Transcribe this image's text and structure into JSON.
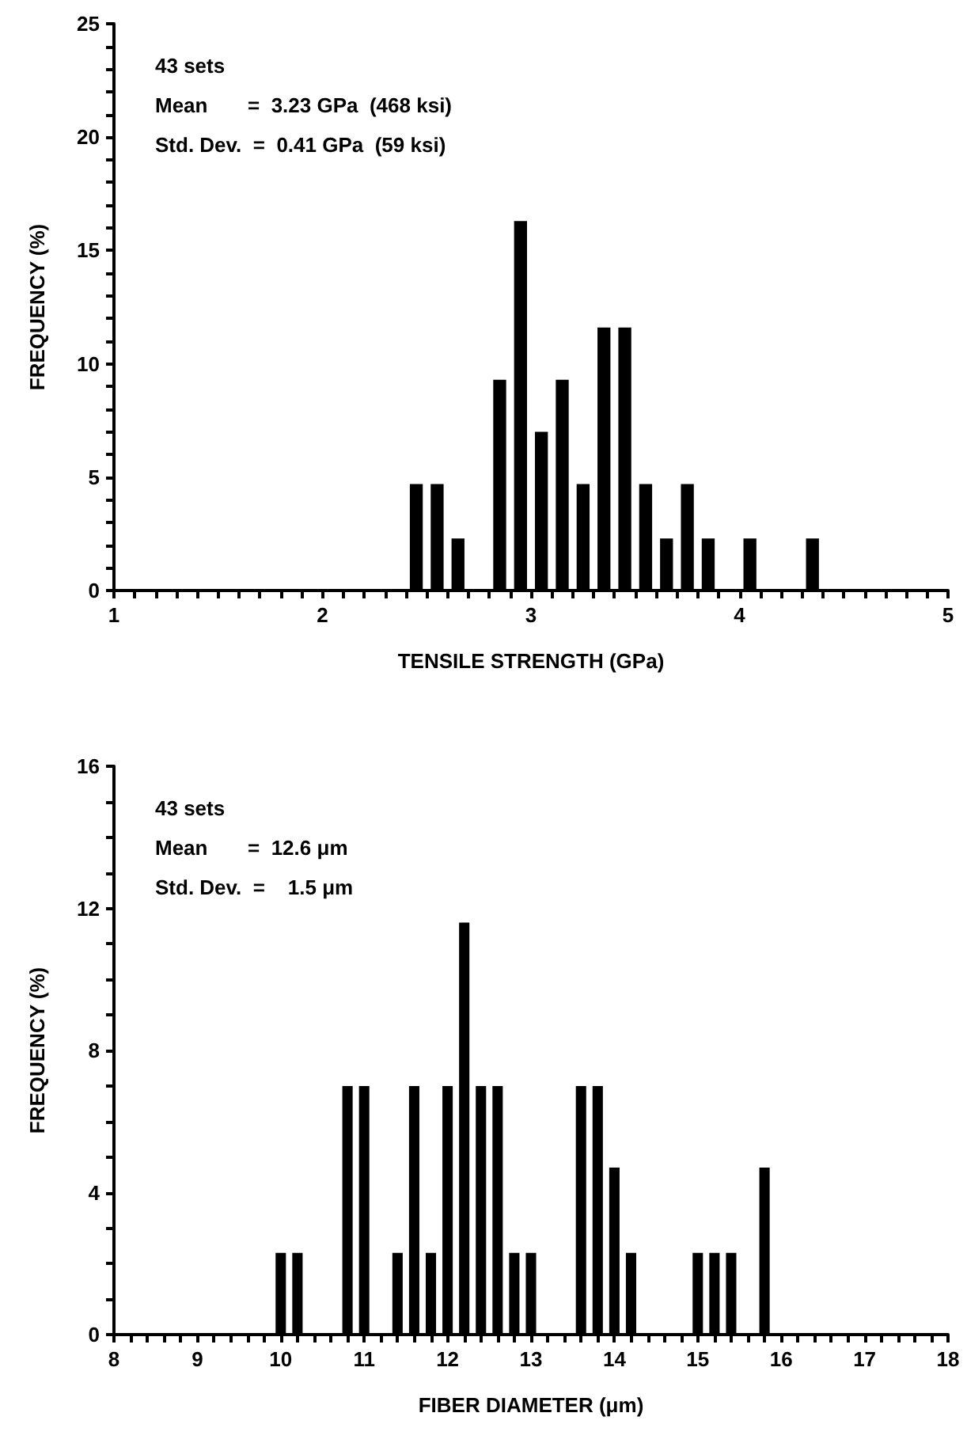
{
  "chart_data": [
    {
      "type": "histogram",
      "xlabel": "TENSILE STRENGTH (GPa)",
      "ylabel": "FREQUENCY (%)",
      "annotations": [
        "43 sets",
        "Mean       =  3.23 GPa  (468 ksi)",
        "Std. Dev.  =  0.41 GPa  (59 ksi)"
      ],
      "bins": [
        2.4,
        2.5,
        2.6,
        2.7,
        2.8,
        2.9,
        3.0,
        3.1,
        3.2,
        3.3,
        3.4,
        3.5,
        3.6,
        3.7,
        3.8,
        3.9,
        4.0,
        4.1,
        4.2,
        4.3,
        4.4
      ],
      "values": [
        4.7,
        4.7,
        2.3,
        0,
        9.3,
        16.3,
        7.0,
        9.3,
        4.7,
        11.6,
        11.6,
        4.7,
        2.3,
        4.7,
        2.3,
        0,
        2.3,
        0,
        0,
        2.3
      ],
      "color": "#000000",
      "xlim": [
        1,
        5
      ],
      "ylim": [
        0,
        25
      ],
      "xticks": [
        1,
        {
          "value": 1.1,
          "label": null
        },
        {
          "value": 1.2,
          "label": null
        },
        {
          "value": 1.3,
          "label": null
        },
        {
          "value": 1.4,
          "label": null
        },
        {
          "value": 1.5,
          "label": null
        },
        {
          "value": 1.6,
          "label": null
        },
        {
          "value": 1.7,
          "label": null
        },
        {
          "value": 1.8,
          "label": null
        },
        {
          "value": 1.9,
          "label": null
        },
        2,
        {
          "value": 2.1,
          "label": null
        },
        {
          "value": 2.2,
          "label": null
        },
        {
          "value": 2.3,
          "label": null
        },
        {
          "value": 2.4,
          "label": null
        },
        {
          "value": 2.5,
          "label": null
        },
        {
          "value": 2.6,
          "label": null
        },
        {
          "value": 2.7,
          "label": null
        },
        {
          "value": 2.8,
          "label": null
        },
        {
          "value": 2.9,
          "label": null
        },
        3,
        {
          "value": 3.1,
          "label": null
        },
        {
          "value": 3.2,
          "label": null
        },
        {
          "value": 3.3,
          "label": null
        },
        {
          "value": 3.4,
          "label": null
        },
        {
          "value": 3.5,
          "label": null
        },
        {
          "value": 3.6,
          "label": null
        },
        {
          "value": 3.7,
          "label": null
        },
        {
          "value": 3.8,
          "label": null
        },
        {
          "value": 3.9,
          "label": null
        },
        4,
        {
          "value": 4.1,
          "label": null
        },
        {
          "value": 4.2,
          "label": null
        },
        {
          "value": 4.3,
          "label": null
        },
        {
          "value": 4.4,
          "label": null
        },
        {
          "value": 4.5,
          "label": null
        },
        {
          "value": 4.6,
          "label": null
        },
        {
          "value": 4.7,
          "label": null
        },
        {
          "value": 4.8,
          "label": null
        },
        {
          "value": 4.9,
          "label": null
        },
        5
      ],
      "yticks": [
        0,
        {
          "value": 1,
          "label": null
        },
        {
          "value": 2,
          "label": null
        },
        {
          "value": 3,
          "label": null
        },
        {
          "value": 4,
          "label": null
        },
        5,
        {
          "value": 6,
          "label": null
        },
        {
          "value": 7,
          "label": null
        },
        {
          "value": 8,
          "label": null
        },
        {
          "value": 9,
          "label": null
        },
        10,
        {
          "value": 11,
          "label": null
        },
        {
          "value": 12,
          "label": null
        },
        {
          "value": 13,
          "label": null
        },
        {
          "value": 14,
          "label": null
        },
        15,
        {
          "value": 16,
          "label": null
        },
        {
          "value": 17,
          "label": null
        },
        {
          "value": 18,
          "label": null
        },
        {
          "value": 19,
          "label": null
        },
        20,
        {
          "value": 21,
          "label": null
        },
        {
          "value": 22,
          "label": null
        },
        {
          "value": 23,
          "label": null
        },
        {
          "value": 24,
          "label": null
        },
        25
      ]
    },
    {
      "type": "histogram",
      "xlabel": "FIBER DIAMETER (μm)",
      "ylabel": "FREQUENCY (%)",
      "annotations": [
        "43 sets",
        "Mean       =  12.6 μm",
        "Std. Dev.  =    1.5 μm"
      ],
      "bins": [
        9.9,
        10.1,
        10.3,
        10.5,
        10.7,
        10.9,
        11.1,
        11.3,
        11.5,
        11.7,
        11.9,
        12.1,
        12.3,
        12.5,
        12.7,
        12.9,
        13.1,
        13.3,
        13.5,
        13.7,
        13.9,
        14.1,
        14.3,
        14.5,
        14.7,
        14.9,
        15.1,
        15.3,
        15.5,
        15.7,
        15.9
      ],
      "values": [
        2.3,
        2.3,
        0,
        0,
        7.0,
        7.0,
        0,
        2.3,
        7.0,
        2.3,
        7.0,
        11.6,
        7.0,
        7.0,
        2.3,
        2.3,
        0,
        0,
        7.0,
        7.0,
        4.7,
        2.3,
        0,
        0,
        0,
        2.3,
        2.3,
        2.3,
        0,
        4.7
      ],
      "color": "#000000",
      "xlim": [
        8,
        18
      ],
      "ylim": [
        0,
        16
      ],
      "xticks": [
        8,
        {
          "value": 8.2,
          "label": null
        },
        {
          "value": 8.4,
          "label": null
        },
        {
          "value": 8.6,
          "label": null
        },
        {
          "value": 8.8,
          "label": null
        },
        9,
        {
          "value": 9.2,
          "label": null
        },
        {
          "value": 9.4,
          "label": null
        },
        {
          "value": 9.6,
          "label": null
        },
        {
          "value": 9.8,
          "label": null
        },
        10,
        {
          "value": 10.2,
          "label": null
        },
        {
          "value": 10.4,
          "label": null
        },
        {
          "value": 10.6,
          "label": null
        },
        {
          "value": 10.8,
          "label": null
        },
        11,
        {
          "value": 11.2,
          "label": null
        },
        {
          "value": 11.4,
          "label": null
        },
        {
          "value": 11.6,
          "label": null
        },
        {
          "value": 11.8,
          "label": null
        },
        12,
        {
          "value": 12.2,
          "label": null
        },
        {
          "value": 12.4,
          "label": null
        },
        {
          "value": 12.6,
          "label": null
        },
        {
          "value": 12.8,
          "label": null
        },
        13,
        {
          "value": 13.2,
          "label": null
        },
        {
          "value": 13.4,
          "label": null
        },
        {
          "value": 13.6,
          "label": null
        },
        {
          "value": 13.8,
          "label": null
        },
        14,
        {
          "value": 14.2,
          "label": null
        },
        {
          "value": 14.4,
          "label": null
        },
        {
          "value": 14.6,
          "label": null
        },
        {
          "value": 14.8,
          "label": null
        },
        15,
        {
          "value": 15.2,
          "label": null
        },
        {
          "value": 15.4,
          "label": null
        },
        {
          "value": 15.6,
          "label": null
        },
        {
          "value": 15.8,
          "label": null
        },
        16,
        {
          "value": 16.2,
          "label": null
        },
        {
          "value": 16.4,
          "label": null
        },
        {
          "value": 16.6,
          "label": null
        },
        {
          "value": 16.8,
          "label": null
        },
        17,
        {
          "value": 17.2,
          "label": null
        },
        {
          "value": 17.4,
          "label": null
        },
        {
          "value": 17.6,
          "label": null
        },
        {
          "value": 17.8,
          "label": null
        },
        18
      ],
      "yticks": [
        0,
        {
          "value": 1,
          "label": null
        },
        {
          "value": 2,
          "label": null
        },
        {
          "value": 3,
          "label": null
        },
        4,
        {
          "value": 5,
          "label": null
        },
        {
          "value": 6,
          "label": null
        },
        {
          "value": 7,
          "label": null
        },
        8,
        {
          "value": 9,
          "label": null
        },
        {
          "value": 10,
          "label": null
        },
        {
          "value": 11,
          "label": null
        },
        12,
        {
          "value": 13,
          "label": null
        },
        {
          "value": 14,
          "label": null
        },
        {
          "value": 15,
          "label": null
        },
        16
      ]
    }
  ]
}
